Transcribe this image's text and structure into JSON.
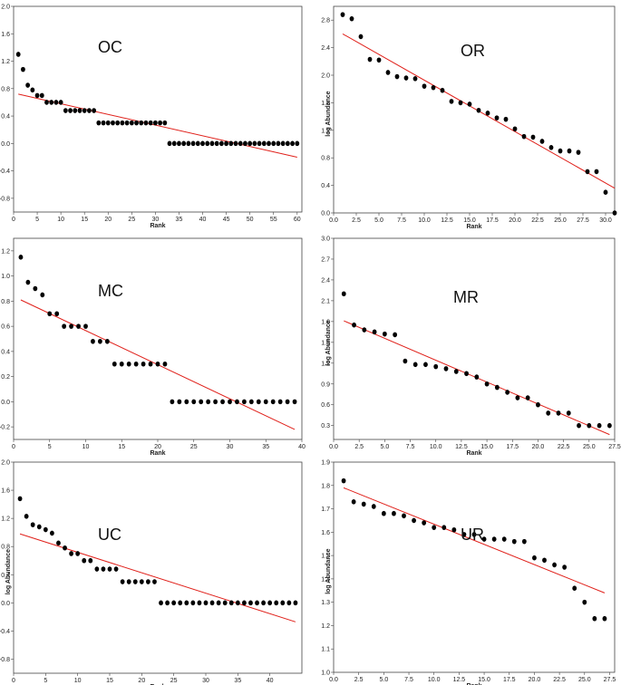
{
  "chart_data": [
    {
      "type": "scatter",
      "title": "OC",
      "xlabel": "Rank",
      "ylabel": "",
      "xlim": [
        0,
        61
      ],
      "ylim": [
        -1.0,
        2.0
      ],
      "xticks": [
        0,
        5,
        10,
        15,
        20,
        25,
        30,
        35,
        40,
        45,
        50,
        55,
        60
      ],
      "xtick_labels": [
        "0",
        "5",
        "10",
        "15",
        "20",
        "25",
        "30",
        "35",
        "40",
        "45",
        "50",
        "55",
        "60"
      ],
      "yticks": [
        -0.8,
        -0.4,
        0.0,
        0.4,
        0.8,
        1.2,
        1.6,
        2.0
      ],
      "ytick_labels": [
        "-0.8",
        "-0.4",
        "0.0",
        "0.4",
        "0.8",
        "1.2",
        "1.6",
        "2.0"
      ],
      "x": [
        1,
        2,
        3,
        4,
        5,
        6,
        7,
        8,
        9,
        10,
        11,
        12,
        13,
        14,
        15,
        16,
        17,
        18,
        19,
        20,
        21,
        22,
        23,
        24,
        25,
        26,
        27,
        28,
        29,
        30,
        31,
        32,
        33,
        34,
        35,
        36,
        37,
        38,
        39,
        40,
        41,
        42,
        43,
        44,
        45,
        46,
        47,
        48,
        49,
        50,
        51,
        52,
        53,
        54,
        55,
        56,
        57,
        58,
        59,
        60
      ],
      "y": [
        1.3,
        1.08,
        0.85,
        0.78,
        0.7,
        0.7,
        0.6,
        0.6,
        0.6,
        0.6,
        0.48,
        0.48,
        0.48,
        0.48,
        0.48,
        0.48,
        0.48,
        0.3,
        0.3,
        0.3,
        0.3,
        0.3,
        0.3,
        0.3,
        0.3,
        0.3,
        0.3,
        0.3,
        0.3,
        0.3,
        0.3,
        0.3,
        0,
        0,
        0,
        0,
        0,
        0,
        0,
        0,
        0,
        0,
        0,
        0,
        0,
        0,
        0,
        0,
        0,
        0,
        0,
        0,
        0,
        0,
        0,
        0,
        0,
        0,
        0,
        0
      ],
      "trendline": {
        "x": [
          1,
          60
        ],
        "y": [
          0.72,
          -0.2
        ]
      },
      "line_color": "#e0201a",
      "marker_color": "#000000"
    },
    {
      "type": "scatter",
      "title": "OR",
      "xlabel": "Rank",
      "ylabel": "log Abundance",
      "xlim": [
        0,
        31
      ],
      "ylim": [
        0.0,
        3.0
      ],
      "xticks": [
        0,
        2.5,
        5,
        7.5,
        10,
        12.5,
        15,
        17.5,
        20,
        22.5,
        25,
        27.5,
        30
      ],
      "xtick_labels": [
        "0.0",
        "2.5",
        "5.0",
        "7.5",
        "10.0",
        "12.5",
        "15.0",
        "17.5",
        "20.0",
        "22.5",
        "25.0",
        "27.5",
        "30.0"
      ],
      "yticks": [
        0.0,
        0.4,
        0.8,
        1.2,
        1.6,
        2.0,
        2.4,
        2.8
      ],
      "ytick_labels": [
        "0.0",
        "0.4",
        "0.8",
        "1.2",
        "1.6",
        "2.0",
        "2.4",
        "2.8"
      ],
      "x": [
        1,
        2,
        3,
        4,
        5,
        6,
        7,
        8,
        9,
        10,
        11,
        12,
        13,
        14,
        15,
        16,
        17,
        18,
        19,
        20,
        21,
        22,
        23,
        24,
        25,
        26,
        27,
        28,
        29,
        30,
        31
      ],
      "y": [
        2.88,
        2.82,
        2.56,
        2.23,
        2.22,
        2.04,
        1.98,
        1.96,
        1.95,
        1.84,
        1.82,
        1.78,
        1.62,
        1.6,
        1.58,
        1.49,
        1.45,
        1.38,
        1.36,
        1.22,
        1.11,
        1.1,
        1.04,
        0.95,
        0.9,
        0.9,
        0.88,
        0.6,
        0.6,
        0.3,
        0.0
      ],
      "trendline": {
        "x": [
          1,
          31
        ],
        "y": [
          2.6,
          0.36
        ]
      },
      "line_color": "#e0201a",
      "marker_color": "#000000"
    },
    {
      "type": "scatter",
      "title": "MC",
      "xlabel": "Rank",
      "ylabel": "",
      "xlim": [
        0,
        40
      ],
      "ylim": [
        -0.3,
        1.3
      ],
      "xticks": [
        0,
        5,
        10,
        15,
        20,
        25,
        30,
        35,
        40
      ],
      "xtick_labels": [
        "0",
        "5",
        "10",
        "15",
        "20",
        "25",
        "30",
        "35",
        "40"
      ],
      "yticks": [
        -0.2,
        0.0,
        0.2,
        0.4,
        0.6,
        0.8,
        1.0,
        1.2
      ],
      "ytick_labels": [
        "-0.2",
        "0.0",
        "0.2",
        "0.4",
        "0.6",
        "0.8",
        "1.0",
        "1.2"
      ],
      "x": [
        1,
        2,
        3,
        4,
        5,
        6,
        7,
        8,
        9,
        10,
        11,
        12,
        13,
        14,
        15,
        16,
        17,
        18,
        19,
        20,
        21,
        22,
        23,
        24,
        25,
        26,
        27,
        28,
        29,
        30,
        31,
        32,
        33,
        34,
        35,
        36,
        37,
        38,
        39
      ],
      "y": [
        1.15,
        0.95,
        0.9,
        0.85,
        0.7,
        0.7,
        0.6,
        0.6,
        0.6,
        0.6,
        0.48,
        0.48,
        0.48,
        0.3,
        0.3,
        0.3,
        0.3,
        0.3,
        0.3,
        0.3,
        0.3,
        0,
        0,
        0,
        0,
        0,
        0,
        0,
        0,
        0,
        0,
        0,
        0,
        0,
        0,
        0,
        0,
        0,
        0
      ],
      "trendline": {
        "x": [
          1,
          39
        ],
        "y": [
          0.81,
          -0.22
        ]
      },
      "line_color": "#e0201a",
      "marker_color": "#000000"
    },
    {
      "type": "scatter",
      "title": "MR",
      "xlabel": "Rank",
      "ylabel": "log Abundance",
      "xlim": [
        0,
        27.5
      ],
      "ylim": [
        0.1,
        3.0
      ],
      "xticks": [
        0,
        2.5,
        5,
        7.5,
        10,
        12.5,
        15,
        17.5,
        20,
        22.5,
        25,
        27.5
      ],
      "xtick_labels": [
        "0.0",
        "2.5",
        "5.0",
        "7.5",
        "10.0",
        "12.5",
        "15.0",
        "17.5",
        "20.0",
        "22.5",
        "25.0",
        "27.5"
      ],
      "yticks": [
        0.3,
        0.6,
        0.9,
        1.2,
        1.5,
        1.8,
        2.1,
        2.4,
        2.7,
        3.0
      ],
      "ytick_labels": [
        "0.3",
        "0.6",
        "0.9",
        "1.2",
        "1.5",
        "1.8",
        "2.1",
        "2.4",
        "2.7",
        "3.0"
      ],
      "x": [
        1,
        2,
        3,
        4,
        5,
        6,
        7,
        8,
        9,
        10,
        11,
        12,
        13,
        14,
        15,
        16,
        17,
        18,
        19,
        20,
        21,
        22,
        23,
        24,
        25,
        26,
        27
      ],
      "y": [
        2.2,
        1.75,
        1.68,
        1.65,
        1.62,
        1.61,
        1.23,
        1.18,
        1.18,
        1.15,
        1.12,
        1.08,
        1.05,
        1.0,
        0.9,
        0.85,
        0.78,
        0.7,
        0.7,
        0.6,
        0.48,
        0.48,
        0.48,
        0.3,
        0.3,
        0.3,
        0.3
      ],
      "trendline": {
        "x": [
          1,
          27
        ],
        "y": [
          1.81,
          0.17
        ]
      },
      "line_color": "#e0201a",
      "marker_color": "#000000"
    },
    {
      "type": "scatter",
      "title": "UC",
      "xlabel": "Rank",
      "ylabel": "log Abundance",
      "xlim": [
        0,
        45
      ],
      "ylim": [
        -1.0,
        2.0
      ],
      "xticks": [
        0,
        5,
        10,
        15,
        20,
        25,
        30,
        35,
        40
      ],
      "xtick_labels": [
        "0",
        "5",
        "10",
        "15",
        "20",
        "25",
        "30",
        "35",
        "40"
      ],
      "yticks": [
        -0.8,
        -0.4,
        0.0,
        0.4,
        0.8,
        1.2,
        1.6,
        2.0
      ],
      "ytick_labels": [
        "-0.8",
        "-0.4",
        "0.0",
        "0.4",
        "0.8",
        "1.2",
        "1.6",
        "2.0"
      ],
      "x": [
        1,
        2,
        3,
        4,
        5,
        6,
        7,
        8,
        9,
        10,
        11,
        12,
        13,
        14,
        15,
        16,
        17,
        18,
        19,
        20,
        21,
        22,
        23,
        24,
        25,
        26,
        27,
        28,
        29,
        30,
        31,
        32,
        33,
        34,
        35,
        36,
        37,
        38,
        39,
        40,
        41,
        42,
        43,
        44
      ],
      "y": [
        1.48,
        1.23,
        1.11,
        1.08,
        1.04,
        0.99,
        0.85,
        0.78,
        0.7,
        0.7,
        0.6,
        0.6,
        0.48,
        0.48,
        0.48,
        0.48,
        0.3,
        0.3,
        0.3,
        0.3,
        0.3,
        0.3,
        0,
        0,
        0,
        0,
        0,
        0,
        0,
        0,
        0,
        0,
        0,
        0,
        0,
        0,
        0,
        0,
        0,
        0,
        0,
        0,
        0,
        0
      ],
      "trendline": {
        "x": [
          1,
          44
        ],
        "y": [
          0.98,
          -0.27
        ]
      },
      "line_color": "#e0201a",
      "marker_color": "#000000"
    },
    {
      "type": "scatter",
      "title": "UR",
      "xlabel": "Rank",
      "ylabel": "log Abundance",
      "xlim": [
        0,
        28
      ],
      "ylim": [
        1.0,
        1.9
      ],
      "xticks": [
        0,
        2.5,
        5,
        7.5,
        10,
        12.5,
        15,
        17.5,
        20,
        22.5,
        25,
        27.5
      ],
      "xtick_labels": [
        "0.0",
        "2.5",
        "5.0",
        "7.5",
        "10.0",
        "12.5",
        "15.0",
        "17.5",
        "20.0",
        "22.5",
        "25.0",
        "27.5"
      ],
      "yticks": [
        1.0,
        1.1,
        1.2,
        1.3,
        1.4,
        1.5,
        1.6,
        1.7,
        1.8,
        1.9
      ],
      "ytick_labels": [
        "1.0",
        "1.1",
        "1.2",
        "1.3",
        "1.4",
        "1.5",
        "1.6",
        "1.7",
        "1.8",
        "1.9"
      ],
      "x": [
        1,
        2,
        3,
        4,
        5,
        6,
        7,
        8,
        9,
        10,
        11,
        12,
        13,
        14,
        15,
        16,
        17,
        18,
        19,
        20,
        21,
        22,
        23,
        24,
        25,
        26,
        27
      ],
      "y": [
        1.82,
        1.73,
        1.72,
        1.71,
        1.68,
        1.68,
        1.67,
        1.65,
        1.64,
        1.62,
        1.62,
        1.61,
        1.59,
        1.59,
        1.57,
        1.57,
        1.57,
        1.56,
        1.56,
        1.49,
        1.48,
        1.46,
        1.45,
        1.36,
        1.3,
        1.23,
        1.23
      ],
      "trendline": {
        "x": [
          1,
          27
        ],
        "y": [
          1.79,
          1.34
        ]
      },
      "line_color": "#e0201a",
      "marker_color": "#000000"
    }
  ]
}
